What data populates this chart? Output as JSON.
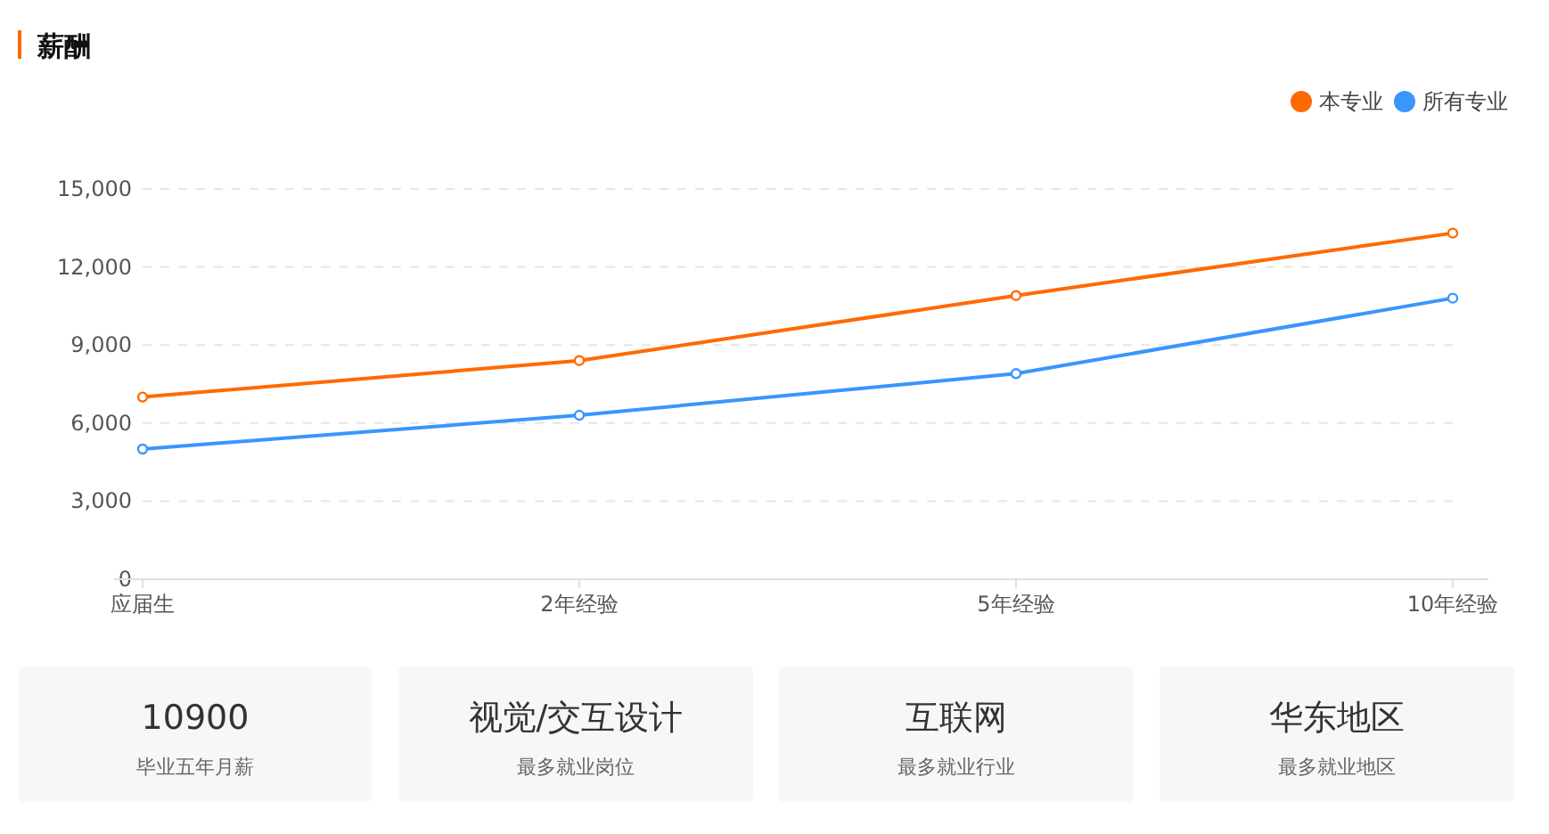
{
  "chart_data": [
    {
      "type": "line",
      "title": "薪酬",
      "categories": [
        "应届生",
        "2年经验",
        "5年经验",
        "10年经验"
      ],
      "series": [
        {
          "name": "本专业",
          "color": "#ff6a00",
          "values": [
            7000,
            8400,
            10900,
            13300
          ]
        },
        {
          "name": "所有专业",
          "color": "#3a95ff",
          "values": [
            5000,
            6300,
            7900,
            10800
          ]
        }
      ],
      "ylim": [
        0,
        15000
      ],
      "yticks": [
        0,
        {
          "value": 3000,
          "label": "3,000"
        },
        {
          "value": 6000,
          "label": "6,000"
        },
        {
          "value": 9000,
          "label": "9,000"
        },
        {
          "value": 12000,
          "label": "12,000"
        },
        {
          "value": 15000,
          "label": "15,000"
        }
      ],
      "grid": "y",
      "legend": "top right",
      "marker": "circle"
    },
    {
      "type": "other",
      "annotations": [
        "10900",
        "毕业五年月薪",
        "视觉/交互设计",
        "最多就业岗位",
        "互联网",
        "最多就业行业",
        "华东地区",
        "最多就业地区"
      ]
    }
  ]
}
